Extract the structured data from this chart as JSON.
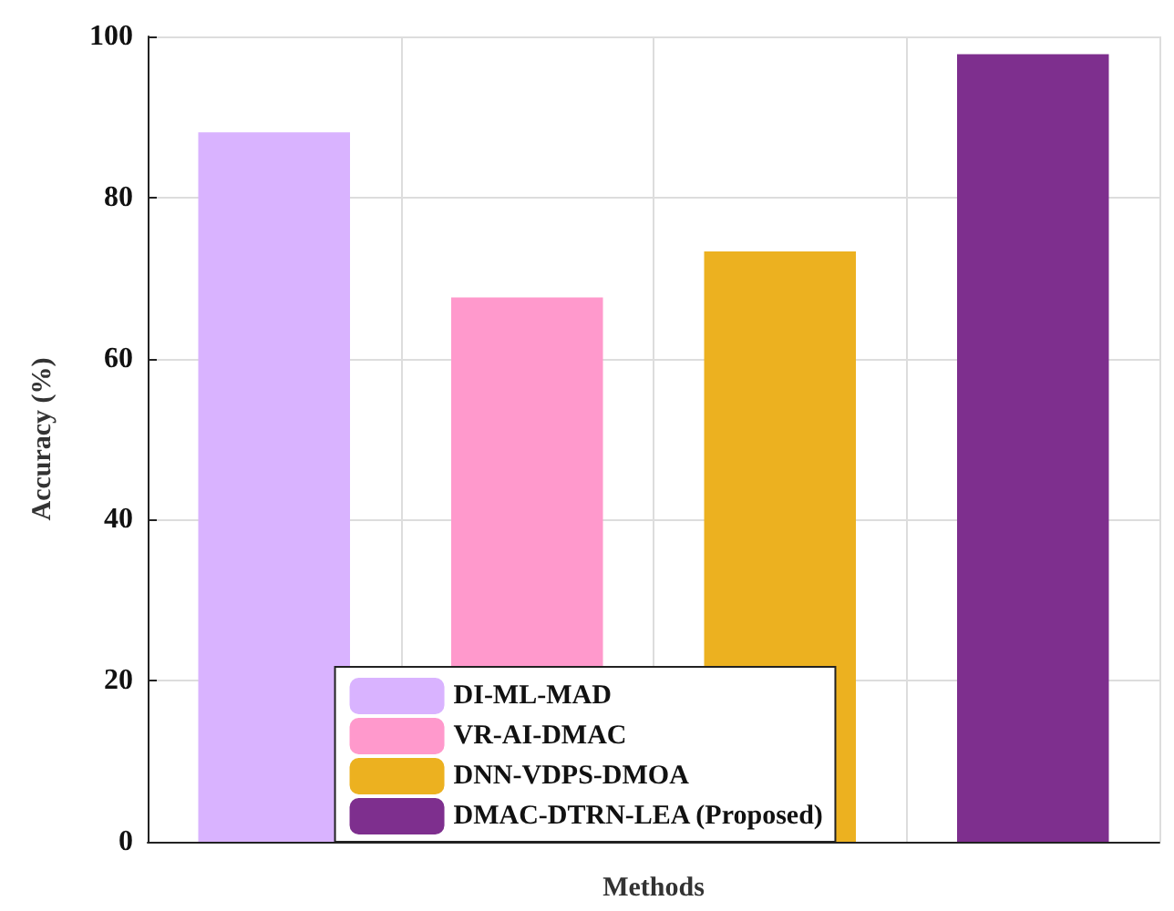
{
  "chart_data": {
    "type": "bar",
    "xlabel": "Methods",
    "ylabel": "Accuracy (%)",
    "categories": [
      null,
      null,
      null,
      null
    ],
    "series": [
      {
        "name": "DI-ML-MAD",
        "color": "#d9b3ff",
        "values": [
          88.1,
          null,
          null,
          null
        ]
      },
      {
        "name": "VR-AI-DMAC",
        "color": "#ff99cc",
        "values": [
          null,
          67.6,
          null,
          null
        ]
      },
      {
        "name": "DNN-VDPS-DMOA",
        "color": "#ecb120",
        "values": [
          null,
          null,
          73.3,
          null
        ]
      },
      {
        "name": "DMAC-DTRN-LEA (Proposed)",
        "color": "#7e2f8e",
        "values": [
          null,
          null,
          null,
          97.8
        ]
      }
    ],
    "ylim": [
      0,
      100
    ],
    "yticks": [
      0,
      20,
      40,
      60,
      80,
      100
    ],
    "grid": true,
    "legend": "bottom"
  }
}
